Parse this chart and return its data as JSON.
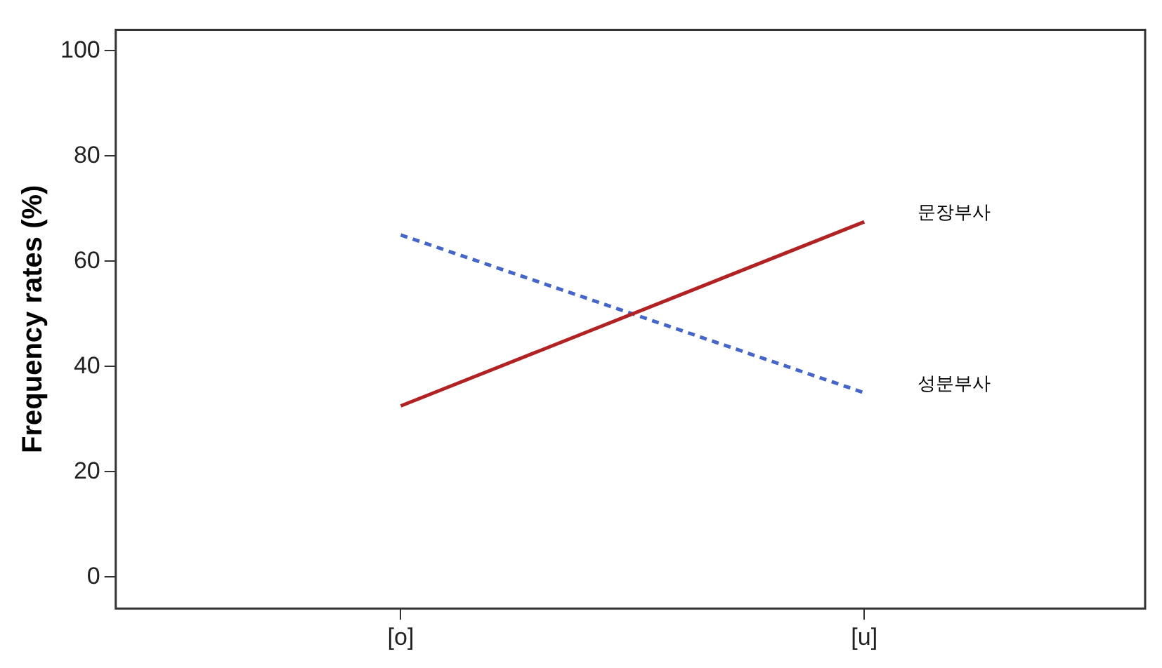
{
  "chart_data": {
    "type": "line",
    "ylabel": "Frequency rates (%)",
    "categories": [
      "[o]",
      "[u]"
    ],
    "series": [
      {
        "name": "문장부사",
        "color": "#b22222",
        "line_style": "solid",
        "values": [
          32.5,
          67.5
        ]
      },
      {
        "name": "성분부사",
        "color": "#4466cc",
        "line_style": "dashed",
        "values": [
          65,
          35
        ]
      }
    ],
    "ylim": [
      -6,
      104
    ],
    "yticks": [
      0,
      20,
      40,
      60,
      80,
      100
    ],
    "grid": false,
    "legend": false,
    "marker": "none"
  }
}
